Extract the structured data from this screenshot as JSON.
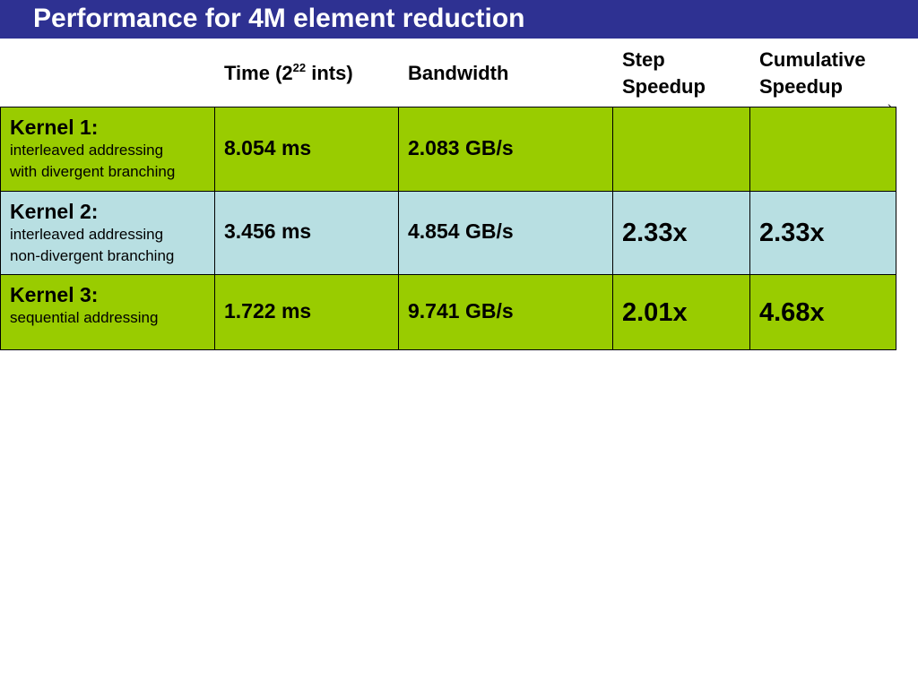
{
  "slide": {
    "title": "Performance for 4M element reduction"
  },
  "headers": {
    "time_prefix": "Time (2",
    "time_exp": "22",
    "time_suffix": " ints)",
    "bandwidth": "Bandwidth",
    "step_line1": "Step",
    "step_line2": "Speedup",
    "cumulative_line1": "Cumulative",
    "cumulative_line2": "Speedup"
  },
  "rows": [
    {
      "name": "Kernel 1:",
      "desc_line1": "interleaved addressing",
      "desc_line2": "with divergent branching",
      "time": "8.054 ms",
      "bandwidth": "2.083 GB/s",
      "step_speedup": "",
      "cumulative_speedup": "",
      "row_color": "#99cc00"
    },
    {
      "name": "Kernel 2:",
      "desc_line1": "interleaved addressing",
      "desc_line2": "non-divergent branching",
      "time": "3.456 ms",
      "bandwidth": "4.854 GB/s",
      "step_speedup": "2.33x",
      "cumulative_speedup": "2.33x",
      "row_color": "#b8dfe2"
    },
    {
      "name": "Kernel 3:",
      "desc_line1": "sequential addressing",
      "desc_line2": "",
      "time": "1.722 ms",
      "bandwidth": "9.741 GB/s",
      "step_speedup": "2.01x",
      "cumulative_speedup": "4.68x",
      "row_color": "#99cc00"
    }
  ],
  "colors": {
    "title_bar": "#2e3192",
    "green_row": "#99cc00",
    "blue_row": "#b8dfe2"
  }
}
